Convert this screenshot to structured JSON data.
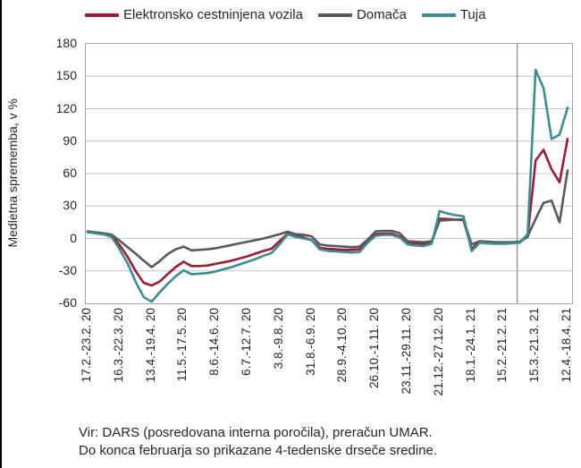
{
  "legend": [
    {
      "label": "Elektronsko cestninjena vozila",
      "color": "#A11932"
    },
    {
      "label": "Domača",
      "color": "#595959"
    },
    {
      "label": "Tuja",
      "color": "#3A8D96"
    }
  ],
  "y_axis": {
    "title": "Medletna sprememba, v %",
    "ticks": [
      180,
      150,
      120,
      90,
      60,
      30,
      0,
      -30,
      -60
    ]
  },
  "footer": {
    "line1": "Vir: DARS (posredovana interna poročila), preračun UMAR.",
    "line2": "Do konca februarja so prikazane 4-tedenske drseče sredine."
  },
  "chart_data": {
    "type": "line",
    "title": "",
    "xlabel": "",
    "ylabel": "Medletna sprememba, v %",
    "ylim": [
      -60,
      180
    ],
    "y_tick_step": 30,
    "grid": true,
    "legend_position": "top",
    "x_unit": "week (weekly observations, 17.2.2020 - 18.4.2021)",
    "x_tick_weeks": [
      0,
      4,
      8,
      12,
      16,
      20,
      24,
      28,
      32,
      36,
      40,
      44,
      48,
      52,
      56,
      60
    ],
    "x_tick_labels": [
      "17.2.-23.2. 20",
      "16.3.-22.3. 20",
      "13.4.-19.4. 20",
      "11.5.-17.5. 20",
      "8.6.-14.6. 20",
      "6.7.-12.7. 20",
      "3.8.-9.8. 20",
      "31.8.-6.9. 20",
      "28.9.-4.10. 20",
      "26.10.-1.11. 20",
      "23.11.-29.11. 20",
      "21.12.-27.12. 20",
      "18.1.-24.1. 21",
      "15.2.-21.2. 21",
      "15.3.-21.3. 21",
      "12.4.-18.4. 21"
    ],
    "divider_week": 53.7,
    "divider_note": "vertical line marks end of February 2021; before it 4-week moving averages are shown",
    "series": [
      {
        "name": "Elektronsko cestninjena vozila",
        "color": "#A11932",
        "values": [
          6,
          5.2,
          4.3,
          2.5,
          -6,
          -17,
          -30,
          -41,
          -43.5,
          -40,
          -33,
          -26.5,
          -21.5,
          -25.5,
          -25.5,
          -25,
          -23.5,
          -22,
          -20.5,
          -18.5,
          -16.5,
          -14,
          -11.5,
          -9.5,
          -2.5,
          4.5,
          2.5,
          1,
          -1.5,
          -8.5,
          -9.5,
          -10,
          -10.5,
          -10.5,
          -10,
          -2,
          4,
          4.5,
          4.5,
          2,
          -4,
          -4.5,
          -5,
          -4,
          18.3,
          18,
          17.5,
          17,
          -9.5,
          -3,
          -3.5,
          -4,
          -4,
          -4,
          -3.5,
          1.5,
          72,
          82,
          64,
          52,
          92
        ]
      },
      {
        "name": "Domača",
        "color": "#595959",
        "values": [
          6.5,
          5.6,
          4.8,
          3.5,
          -2,
          -8,
          -14,
          -20.5,
          -26.5,
          -21,
          -14.5,
          -10,
          -7.5,
          -11,
          -10.5,
          -10,
          -9,
          -7.5,
          -6,
          -4.5,
          -3,
          -1.5,
          0,
          2,
          4,
          6.3,
          4,
          3.5,
          2,
          -5.5,
          -6.5,
          -7,
          -7.5,
          -8,
          -7.5,
          -1,
          6.5,
          7,
          7,
          5,
          -2.5,
          -3,
          -3.5,
          -2.5,
          16.5,
          17,
          17.5,
          17.7,
          -5.5,
          -2.5,
          -3,
          -3.5,
          -3.5,
          -3.5,
          -3,
          2,
          18,
          33,
          35,
          15,
          63
        ]
      },
      {
        "name": "Tuja",
        "color": "#3A8D96",
        "values": [
          5.8,
          4.8,
          3.8,
          1.5,
          -10,
          -23,
          -40,
          -54,
          -58.5,
          -50,
          -42,
          -35,
          -29.5,
          -33,
          -32.5,
          -32,
          -30.5,
          -28.5,
          -26.5,
          -24,
          -21.5,
          -19,
          -16,
          -13.5,
          -5.5,
          3.8,
          1.4,
          0,
          -1.5,
          -10,
          -11.5,
          -12,
          -12.5,
          -13,
          -12.5,
          -4,
          2.5,
          3.3,
          3.3,
          1,
          -5.5,
          -6.5,
          -7,
          -5,
          25.4,
          23,
          21.5,
          20.5,
          -11.7,
          -4,
          -4.5,
          -5,
          -5,
          -4.5,
          -4,
          4,
          156,
          139,
          92,
          96,
          121
        ]
      }
    ],
    "style": {
      "grid_color": "#C4C4C4",
      "plot_border_color": "#A6A6A6",
      "divider_color": "#8C8C8C",
      "line_width": 2.6
    }
  }
}
